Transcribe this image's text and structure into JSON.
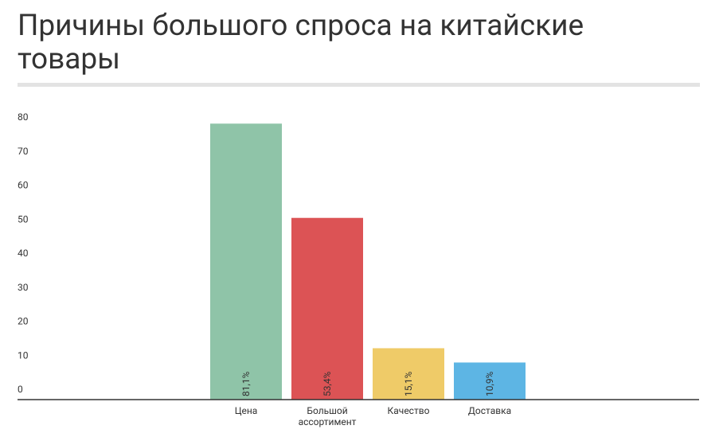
{
  "chart_data": {
    "type": "bar",
    "title": "Причины большого спроса на китайские товары",
    "categories": [
      "Цена",
      "Большой ассортимент",
      "Качество",
      "Доставка"
    ],
    "values": [
      81.1,
      53.4,
      15.1,
      10.9
    ],
    "value_labels": [
      "81,1%",
      "53,4%",
      "15,1%",
      "10,9%"
    ],
    "colors": [
      "#8fc4a8",
      "#dc5355",
      "#efcb68",
      "#5db5e4"
    ],
    "ylim": [
      0,
      85
    ],
    "yticks": [
      0,
      10,
      20,
      30,
      40,
      50,
      60,
      70,
      80
    ]
  }
}
